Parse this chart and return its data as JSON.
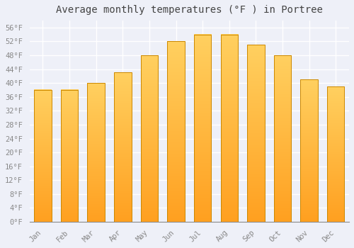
{
  "title": "Average monthly temperatures (°F ) in Portree",
  "months": [
    "Jan",
    "Feb",
    "Mar",
    "Apr",
    "May",
    "Jun",
    "Jul",
    "Aug",
    "Sep",
    "Oct",
    "Nov",
    "Dec"
  ],
  "values": [
    38,
    38,
    40,
    43,
    48,
    52,
    54,
    54,
    51,
    48,
    41,
    39
  ],
  "bar_color_top": "#FFD060",
  "bar_color_bottom": "#FFA020",
  "bar_edge_color": "#CC8800",
  "background_color": "#EEF0F8",
  "plot_bg_color": "#EEF0F8",
  "grid_color": "#FFFFFF",
  "tick_label_color": "#888888",
  "title_color": "#444444",
  "ylim": [
    0,
    58
  ],
  "yticks": [
    0,
    4,
    8,
    12,
    16,
    20,
    24,
    28,
    32,
    36,
    40,
    44,
    48,
    52,
    56
  ],
  "ytick_labels": [
    "0°F",
    "4°F",
    "8°F",
    "12°F",
    "16°F",
    "20°F",
    "24°F",
    "28°F",
    "32°F",
    "36°F",
    "40°F",
    "44°F",
    "48°F",
    "52°F",
    "56°F"
  ],
  "title_fontsize": 10,
  "tick_fontsize": 7.5,
  "bar_width": 0.65
}
